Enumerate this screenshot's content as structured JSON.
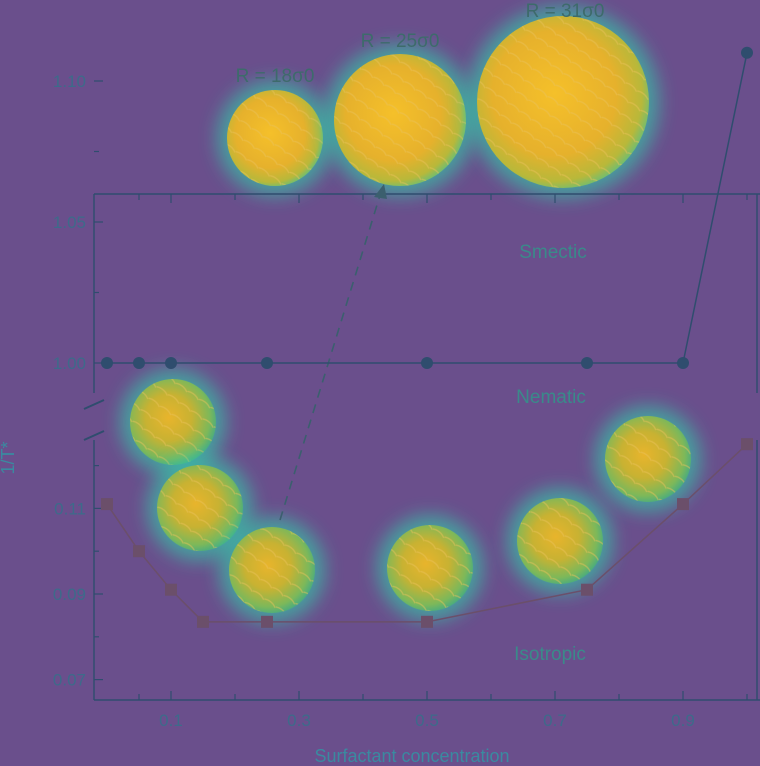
{
  "chart_data": {
    "type": "line",
    "xlabel": "Surfactant concentration",
    "ylabel": "1/T*",
    "x_ticks": [
      "0.1",
      "0.3",
      "0.5",
      "0.7",
      "0.9"
    ],
    "upper_panel": {
      "y_ticks": [
        "1.10",
        "1.05",
        "1.00"
      ],
      "ylim": [
        0.995,
        1.12
      ],
      "series": [
        {
          "x": [
            0.0,
            0.05,
            0.1,
            0.25,
            0.5,
            0.75,
            0.9,
            1.0
          ],
          "y": [
            1.0,
            1.0,
            1.0,
            1.0,
            1.0,
            1.0,
            1.0,
            1.11
          ],
          "marker": "circle",
          "color": "#2f4d6e"
        }
      ]
    },
    "lower_panel": {
      "y_ticks": [
        "0.11",
        "0.09",
        "0.07"
      ],
      "ylim": [
        0.065,
        0.12
      ],
      "series": [
        {
          "x": [
            0.0,
            0.05,
            0.1,
            0.15,
            0.25,
            0.5,
            0.75,
            0.9,
            1.0
          ],
          "y": [
            0.111,
            0.1,
            0.091,
            0.0835,
            0.0835,
            0.0835,
            0.091,
            0.111,
            0.125
          ],
          "marker": "square",
          "color": "#6b4f6a"
        }
      ]
    },
    "region_labels": [
      "Smectic",
      "Nematic",
      "Isotropic"
    ],
    "sphere_labels": [
      "R = 18σ0",
      "R = 25σ0",
      "R = 31σ0"
    ]
  },
  "colors": {
    "background": "#6a4f8c",
    "sphere_core": "#f0b82a",
    "sphere_glow": "#2fd6b0",
    "axis": "#2f4d6e"
  }
}
